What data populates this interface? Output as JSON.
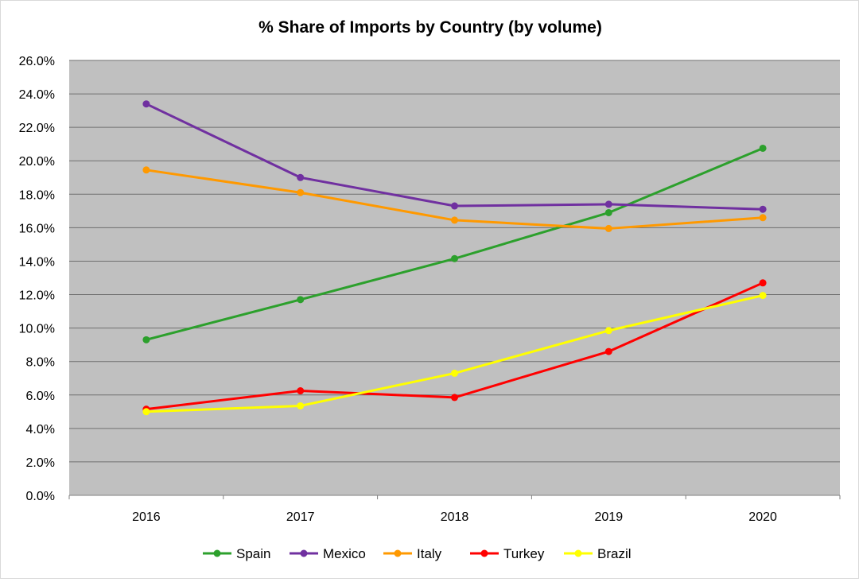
{
  "chart_data": {
    "type": "line",
    "title": "% Share of Imports by Country (by volume)",
    "xlabel": "",
    "ylabel": "",
    "categories": [
      "2016",
      "2017",
      "2018",
      "2019",
      "2020"
    ],
    "y_ticks": [
      "0.0%",
      "2.0%",
      "4.0%",
      "6.0%",
      "8.0%",
      "10.0%",
      "12.0%",
      "14.0%",
      "16.0%",
      "18.0%",
      "20.0%",
      "22.0%",
      "24.0%",
      "26.0%"
    ],
    "ylim": [
      0,
      26
    ],
    "y_unit": "%",
    "grid": true,
    "legend_position": "bottom",
    "plot_background": "#c0c0c0",
    "series": [
      {
        "name": "Spain",
        "color": "#2ca02c",
        "values": [
          9.3,
          11.7,
          14.15,
          16.9,
          20.75
        ]
      },
      {
        "name": "Mexico",
        "color": "#7030a0",
        "values": [
          23.4,
          19.0,
          17.3,
          17.4,
          17.1
        ]
      },
      {
        "name": "Italy",
        "color": "#ff9900",
        "values": [
          19.45,
          18.1,
          16.45,
          15.95,
          16.6
        ]
      },
      {
        "name": "Turkey",
        "color": "#ff0000",
        "values": [
          5.15,
          6.25,
          5.85,
          8.6,
          12.7
        ]
      },
      {
        "name": "Brazil",
        "color": "#ffff00",
        "values": [
          5.0,
          5.35,
          7.3,
          9.85,
          11.95
        ]
      }
    ]
  }
}
